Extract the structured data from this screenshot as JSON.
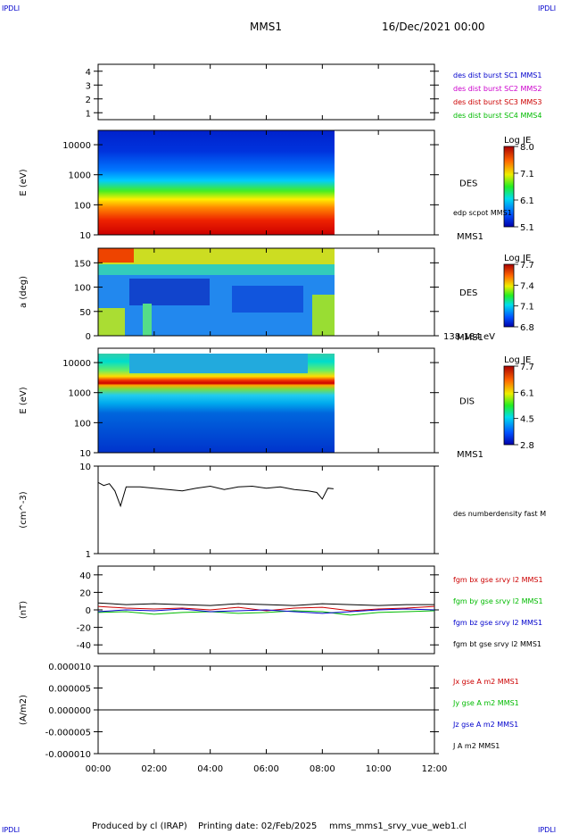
{
  "header": {
    "corner_tl": "IPDLI",
    "corner_tr": "IPDLI",
    "corner_bl": "IPDLI",
    "corner_br": "IPDLI",
    "title": "MMS1",
    "date": "16/Dec/2021 00:00"
  },
  "footer": {
    "produced": "Produced by cl (IRAP)",
    "printing": "Printing date: 02/Feb/2025",
    "file": "mms_mms1_srvy_vue_web1.cl"
  },
  "colors": {
    "black": "#000000",
    "blue": "#0000cc",
    "magenta": "#cc00cc",
    "red": "#cc0000",
    "green": "#00bb00"
  },
  "chart_data": [
    {
      "type": "table",
      "panel": "burst",
      "ylim": [
        0.5,
        4.5
      ],
      "yticks": [
        "1",
        "2",
        "3",
        "4"
      ],
      "legend": [
        {
          "text": "des dist burst SC1 MMS1",
          "color": "#0000cc"
        },
        {
          "text": "des dist burst SC2 MMS2",
          "color": "#cc00cc"
        },
        {
          "text": "des dist burst SC3 MMS3",
          "color": "#cc0000"
        },
        {
          "text": "des dist burst SC4 MMS4",
          "color": "#00bb00"
        }
      ]
    },
    {
      "type": "heatmap",
      "panel": "des_energy",
      "ylabel": "E (eV)",
      "ylim": [
        10,
        30000
      ],
      "yscale": "log",
      "yticks": [
        "10",
        "100",
        "1000",
        "10000"
      ],
      "label": "DES",
      "sublabel": "MMS1",
      "annotation": "edp scpot MMS1",
      "colorbar": {
        "title": "Log JE",
        "ticks": [
          "8.0",
          "7.1",
          "6.1",
          "5.1"
        ],
        "range": [
          5.1,
          8.0
        ]
      },
      "data_end_hour": 8.42
    },
    {
      "type": "heatmap",
      "panel": "des_pitch",
      "ylabel": "a (deg)",
      "ylim": [
        0,
        180
      ],
      "yticks": [
        "0",
        "50",
        "100",
        "150"
      ],
      "label": "DES",
      "sublabel": "MMS1",
      "annotation": "138-184 eV",
      "colorbar": {
        "title": "Log JE",
        "ticks": [
          "7.7",
          "7.4",
          "7.1",
          "6.8"
        ],
        "range": [
          6.8,
          7.7
        ]
      },
      "data_end_hour": 8.42
    },
    {
      "type": "heatmap",
      "panel": "dis_energy",
      "ylabel": "E (eV)",
      "ylim": [
        10,
        30000
      ],
      "yscale": "log",
      "yticks": [
        "10",
        "100",
        "1000",
        "10000"
      ],
      "label": "DIS",
      "sublabel": "MMS1",
      "colorbar": {
        "title": "Log JE",
        "ticks": [
          "7.7",
          "6.1",
          "4.5",
          "2.8"
        ],
        "range": [
          2.8,
          7.7
        ]
      },
      "data_end_hour": 8.42
    },
    {
      "type": "line",
      "panel": "density",
      "ylabel": "(cm^-3)",
      "ylim": [
        1,
        10
      ],
      "yscale": "log",
      "yticks": [
        "1",
        "10"
      ],
      "series": [
        {
          "name": "des numberdensity fast M",
          "color": "#000000",
          "x": [
            0,
            0.2,
            0.4,
            0.6,
            0.8,
            1.0,
            1.5,
            2.0,
            2.5,
            3.0,
            3.5,
            4.0,
            4.5,
            5.0,
            5.5,
            6.0,
            6.5,
            7.0,
            7.5,
            7.8,
            8.0,
            8.2,
            8.4
          ],
          "y": [
            6.5,
            6.0,
            6.3,
            5.2,
            3.5,
            5.8,
            5.8,
            5.6,
            5.4,
            5.2,
            5.6,
            5.9,
            5.4,
            5.8,
            5.9,
            5.6,
            5.8,
            5.4,
            5.2,
            5.0,
            4.2,
            5.6,
            5.5
          ]
        }
      ]
    },
    {
      "type": "line",
      "panel": "magnetic_field",
      "ylabel": "(nT)",
      "ylim": [
        -50,
        50
      ],
      "yticks": [
        "-40",
        "-20",
        "0",
        "20",
        "40"
      ],
      "series": [
        {
          "name": "fgm bx gse srvy l2 MMS1",
          "color": "#cc0000",
          "x": [
            0,
            1,
            2,
            3,
            4,
            5,
            6,
            7,
            8,
            9,
            10,
            11,
            12
          ],
          "y": [
            4,
            2,
            1,
            2,
            0,
            3,
            -1,
            2,
            3,
            -1,
            1,
            2,
            4
          ]
        },
        {
          "name": "fgm by gse srvy l2 MMS1",
          "color": "#00bb00",
          "x": [
            0,
            1,
            2,
            3,
            4,
            5,
            6,
            7,
            8,
            9,
            10,
            11,
            12
          ],
          "y": [
            -3,
            -2,
            -5,
            -3,
            -2,
            -4,
            -3,
            -1,
            -2,
            -6,
            -3,
            -2,
            -1
          ]
        },
        {
          "name": "fgm bz gse srvy l2 MMS1",
          "color": "#0000cc",
          "x": [
            0,
            1,
            2,
            3,
            4,
            5,
            6,
            7,
            8,
            9,
            10,
            11,
            12
          ],
          "y": [
            -2,
            0,
            -1,
            1,
            -2,
            -1,
            0,
            -2,
            -4,
            -2,
            0,
            1,
            0
          ]
        },
        {
          "name": "fgm bt gse srvy l2 MMS1",
          "color": "#000000",
          "x": [
            0,
            1,
            2,
            3,
            4,
            5,
            6,
            7,
            8,
            9,
            10,
            11,
            12
          ],
          "y": [
            8,
            6,
            7,
            6,
            5,
            7,
            6,
            5,
            7,
            6,
            5,
            6,
            6
          ]
        }
      ]
    },
    {
      "type": "line",
      "panel": "current",
      "ylabel": "(A/m2)",
      "ylim": [
        -1e-05,
        1e-05
      ],
      "yticks": [
        "0.000010",
        "0.000005",
        "0.000000",
        "-0.000005",
        "-0.000010"
      ],
      "series": [
        {
          "name": "Jx gse A m2 MMS1",
          "color": "#cc0000",
          "x": [],
          "y": []
        },
        {
          "name": "Jy gse A m2 MMS1",
          "color": "#00bb00",
          "x": [],
          "y": []
        },
        {
          "name": "Jz gse A m2 MMS1",
          "color": "#0000cc",
          "x": [],
          "y": []
        },
        {
          "name": "J A m2 MMS1",
          "color": "#000000",
          "x": [
            0,
            12
          ],
          "y": [
            0,
            0
          ]
        }
      ]
    }
  ],
  "x_axis": {
    "range_hours": [
      0,
      12
    ],
    "ticks": [
      "00:00",
      "02:00",
      "04:00",
      "06:00",
      "08:00",
      "10:00",
      "12:00"
    ]
  }
}
